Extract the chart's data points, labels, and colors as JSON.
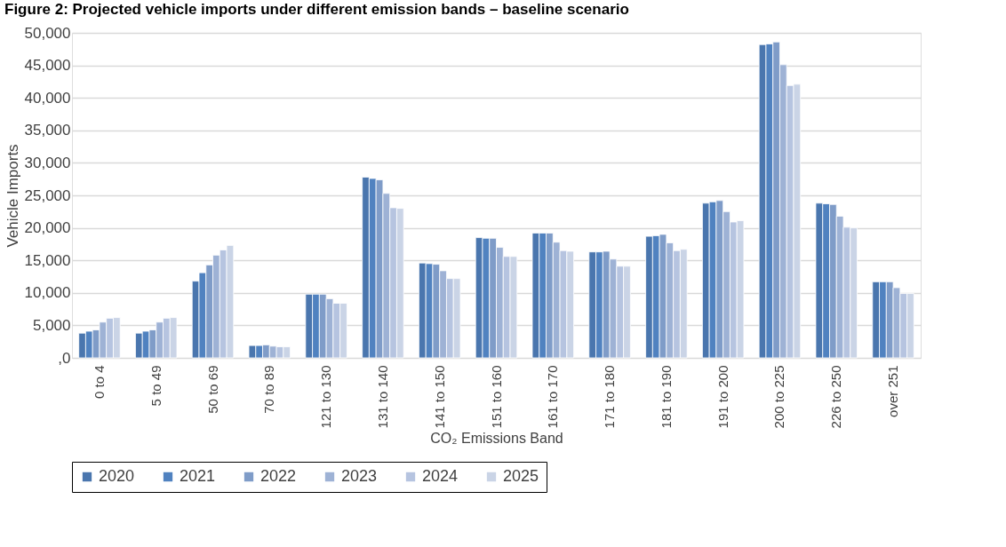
{
  "chart_data": {
    "type": "bar",
    "title": "Figure 2: Projected vehicle imports under different emission bands – baseline scenario",
    "xlabel": "CO₂ Emissions Band",
    "ylabel": "Vehicle Imports",
    "categories": [
      "0 to 4",
      "5 to 49",
      "50 to 69",
      "70 to 89",
      "121 to 130",
      "131 to 140",
      "141 to 150",
      "151 to 160",
      "161 to 170",
      "171 to 180",
      "181 to 190",
      "191 to 200",
      "200 to 225",
      "226 to 250",
      "over 251"
    ],
    "series": [
      {
        "name": "2020",
        "color": "#4a76ae",
        "values": [
          3800,
          3800,
          11800,
          1900,
          9800,
          27800,
          14600,
          18500,
          19200,
          16300,
          18700,
          23800,
          48200,
          23800,
          11700
        ]
      },
      {
        "name": "2021",
        "color": "#5082c0",
        "values": [
          4100,
          4100,
          13100,
          1900,
          9800,
          27600,
          14500,
          18400,
          19200,
          16300,
          18800,
          24000,
          48300,
          23700,
          11700
        ]
      },
      {
        "name": "2022",
        "color": "#7f9cc8",
        "values": [
          4300,
          4300,
          14300,
          2000,
          9800,
          27400,
          14400,
          18400,
          19200,
          16400,
          19000,
          24200,
          48600,
          23600,
          11700
        ]
      },
      {
        "name": "2023",
        "color": "#9eb2d5",
        "values": [
          5500,
          5500,
          15800,
          1800,
          9100,
          25300,
          13400,
          17000,
          17800,
          15200,
          17700,
          22500,
          45100,
          21800,
          10800
        ]
      },
      {
        "name": "2024",
        "color": "#b6c4e0",
        "values": [
          6100,
          6100,
          16600,
          1700,
          8400,
          23100,
          12200,
          15600,
          16500,
          14100,
          16500,
          20900,
          41900,
          20100,
          9900
        ]
      },
      {
        "name": "2025",
        "color": "#cad4e6",
        "values": [
          6200,
          6200,
          17300,
          1700,
          8400,
          23000,
          12200,
          15600,
          16400,
          14100,
          16700,
          21100,
          42100,
          20000,
          9900
        ]
      }
    ],
    "ylim": [
      0,
      50000
    ],
    "yticks": [
      {
        "value": 0,
        "label": ",0"
      },
      {
        "value": 5000,
        "label": "5,000"
      },
      {
        "value": 10000,
        "label": "10,000"
      },
      {
        "value": 15000,
        "label": "15,000"
      },
      {
        "value": 20000,
        "label": "20,000"
      },
      {
        "value": 25000,
        "label": "25,000"
      },
      {
        "value": 30000,
        "label": "30,000"
      },
      {
        "value": 35000,
        "label": "35,000"
      },
      {
        "value": 40000,
        "label": "40,000"
      },
      {
        "value": 45000,
        "label": "45,000"
      },
      {
        "value": 50000,
        "label": "50,000"
      }
    ],
    "grid": "y",
    "legend": "bottom"
  }
}
